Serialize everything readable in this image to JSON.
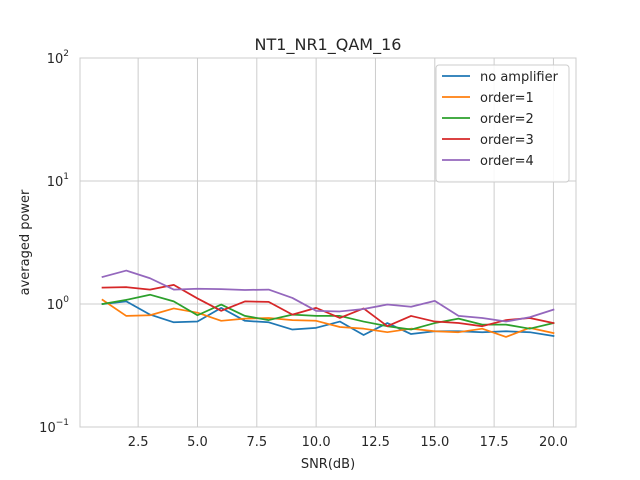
{
  "chart_data": {
    "type": "line",
    "title": "NT1_NR1_QAM_16",
    "xlabel": "SNR(dB)",
    "ylabel": "averaged power",
    "yscale": "log",
    "xlim": [
      0.05,
      20.95
    ],
    "ylim": [
      0.1,
      100
    ],
    "x_ticks": [
      2.5,
      5.0,
      7.5,
      10.0,
      12.5,
      15.0,
      17.5,
      20.0
    ],
    "x_tick_labels": [
      "2.5",
      "5.0",
      "7.5",
      "10.0",
      "12.5",
      "15.0",
      "17.5",
      "20.0"
    ],
    "y_ticks": [
      0.1,
      1,
      10,
      100
    ],
    "y_tick_labels": [
      {
        "base": "10",
        "exp": "−1"
      },
      {
        "base": "10",
        "exp": "0"
      },
      {
        "base": "10",
        "exp": "1"
      },
      {
        "base": "10",
        "exp": "2"
      }
    ],
    "grid": true,
    "legend_position": "top-right",
    "x": [
      1,
      2,
      3,
      4,
      5,
      6,
      7,
      8,
      9,
      10,
      11,
      12,
      13,
      14,
      15,
      16,
      17,
      18,
      19,
      20
    ],
    "series": [
      {
        "name": "no amplifier",
        "color": "#1f77b4",
        "values": [
          1.0,
          1.05,
          0.82,
          0.71,
          0.72,
          0.93,
          0.73,
          0.71,
          0.62,
          0.64,
          0.72,
          0.56,
          0.7,
          0.57,
          0.6,
          0.6,
          0.59,
          0.6,
          0.59,
          0.55
        ]
      },
      {
        "name": "order=1",
        "color": "#ff7f0e",
        "values": [
          1.08,
          0.8,
          0.81,
          0.92,
          0.85,
          0.73,
          0.76,
          0.77,
          0.74,
          0.73,
          0.65,
          0.63,
          0.59,
          0.63,
          0.6,
          0.59,
          0.63,
          0.54,
          0.64,
          0.58
        ]
      },
      {
        "name": "order=2",
        "color": "#2ca02c",
        "values": [
          1.0,
          1.08,
          1.19,
          1.05,
          0.81,
          0.99,
          0.8,
          0.74,
          0.82,
          0.8,
          0.8,
          0.72,
          0.66,
          0.62,
          0.7,
          0.76,
          0.68,
          0.68,
          0.63,
          0.7
        ]
      },
      {
        "name": "order=3",
        "color": "#d62728",
        "values": [
          1.36,
          1.37,
          1.31,
          1.43,
          1.11,
          0.88,
          1.05,
          1.04,
          0.82,
          0.93,
          0.77,
          0.92,
          0.66,
          0.8,
          0.72,
          0.7,
          0.66,
          0.74,
          0.77,
          0.7
        ]
      },
      {
        "name": "order=4",
        "color": "#9467bd",
        "values": [
          1.66,
          1.87,
          1.62,
          1.31,
          1.33,
          1.32,
          1.3,
          1.31,
          1.12,
          0.88,
          0.87,
          0.91,
          0.99,
          0.95,
          1.06,
          0.8,
          0.77,
          0.72,
          0.78,
          0.9
        ]
      }
    ]
  }
}
